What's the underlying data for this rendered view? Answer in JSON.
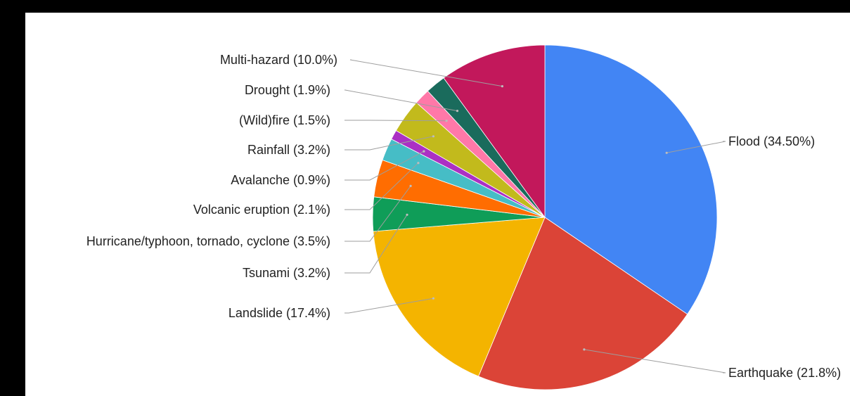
{
  "chart_data": {
    "type": "pie",
    "title": "",
    "start_angle_deg": 0,
    "direction": "clockwise",
    "slices": [
      {
        "name": "Flood",
        "label": "Flood (34.50%)",
        "value": 34.5,
        "color": "#4285F4"
      },
      {
        "name": "Earthquake",
        "label": "Earthquake (21.8%)",
        "value": 21.8,
        "color": "#DB4437"
      },
      {
        "name": "Landslide",
        "label": "Landslide (17.4%)",
        "value": 17.4,
        "color": "#F4B400"
      },
      {
        "name": "Tsunami",
        "label": "Tsunami (3.2%)",
        "value": 3.2,
        "color": "#0F9D58"
      },
      {
        "name": "Hurricane/typhoon, tornado, cyclone",
        "label": "Hurricane/typhoon, tornado, cyclone (3.5%)",
        "value": 3.5,
        "color": "#FF6D01"
      },
      {
        "name": "Volcanic eruption",
        "label": "Volcanic eruption (2.1%)",
        "value": 2.1,
        "color": "#46BDC6"
      },
      {
        "name": "Avalanche",
        "label": "Avalanche (0.9%)",
        "value": 0.9,
        "color": "#AB30C4"
      },
      {
        "name": "Rainfall",
        "label": "Rainfall (3.2%)",
        "value": 3.2,
        "color": "#C2BA1C"
      },
      {
        "name": "(Wild)fire",
        "label": "(Wild)fire (1.5%)",
        "value": 1.5,
        "color": "#FF78A8"
      },
      {
        "name": "Drought",
        "label": "Drought (1.9%)",
        "value": 1.9,
        "color": "#1A6B5C"
      },
      {
        "name": "Multi-hazard",
        "label": "Multi-hazard (10.0%)",
        "value": 10.0,
        "color": "#C2185B"
      }
    ],
    "legend": "none",
    "labels": "outside with leader lines"
  }
}
